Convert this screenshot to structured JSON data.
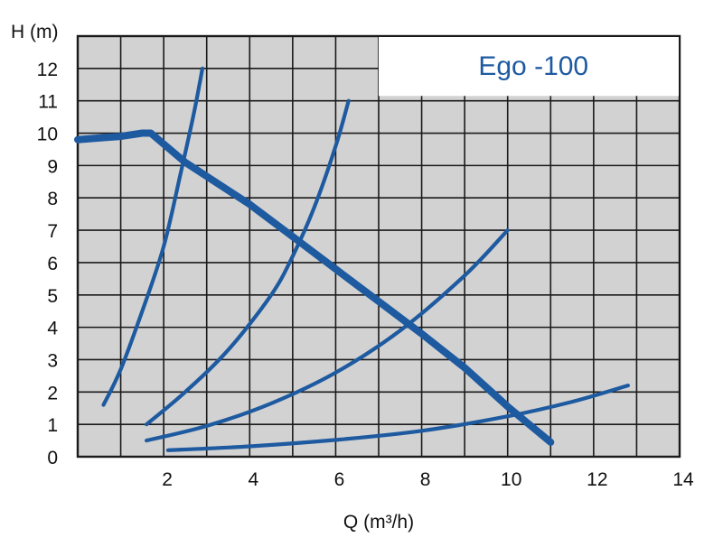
{
  "chart_data": {
    "type": "line",
    "title": "Ego -100",
    "xlabel": "Q (m³/h)",
    "ylabel": "H (m)",
    "xlim": [
      0,
      14
    ],
    "ylim": [
      0,
      13
    ],
    "grid": true,
    "x_ticks": [
      "2",
      "4",
      "6",
      "8",
      "10",
      "12",
      "14"
    ],
    "y_ticks": [
      "0",
      "1",
      "2",
      "3",
      "4",
      "5",
      "6",
      "7",
      "8",
      "9",
      "10",
      "11",
      "12"
    ],
    "colors": {
      "line": "#1e5aa0",
      "plot_bg": "#d2d2d2",
      "grid": "#1a1a1a",
      "title": "#1e5aa0"
    },
    "series": [
      {
        "role": "pump_curve",
        "x": [
          0,
          0.5,
          1.0,
          1.5,
          1.7,
          2.5,
          4.0,
          5.0,
          6.0,
          7.0,
          8.0,
          9.0,
          10.0,
          11.0
        ],
        "y": [
          9.8,
          9.85,
          9.9,
          10.0,
          10.0,
          9.1,
          7.8,
          6.8,
          5.8,
          4.8,
          3.8,
          2.75,
          1.55,
          0.45
        ]
      },
      {
        "role": "system_curve",
        "x": [
          0.6,
          1.0,
          1.5,
          2.0,
          2.4,
          2.7,
          2.9
        ],
        "y": [
          1.6,
          2.7,
          4.5,
          6.5,
          8.8,
          10.6,
          12.0
        ]
      },
      {
        "role": "system_curve",
        "x": [
          1.6,
          2.5,
          3.5,
          4.5,
          5.0,
          5.5,
          6.0,
          6.3
        ],
        "y": [
          1.0,
          2.0,
          3.3,
          5.0,
          6.2,
          7.7,
          9.6,
          11.0
        ]
      },
      {
        "role": "system_curve",
        "x": [
          1.6,
          3.0,
          4.5,
          6.0,
          7.5,
          9.0,
          10.0
        ],
        "y": [
          0.5,
          0.95,
          1.65,
          2.6,
          3.9,
          5.6,
          7.0
        ]
      },
      {
        "role": "system_curve",
        "x": [
          2.1,
          4.0,
          6.0,
          8.0,
          10.0,
          11.5,
          12.8
        ],
        "y": [
          0.2,
          0.32,
          0.52,
          0.8,
          1.25,
          1.7,
          2.2
        ]
      }
    ]
  }
}
